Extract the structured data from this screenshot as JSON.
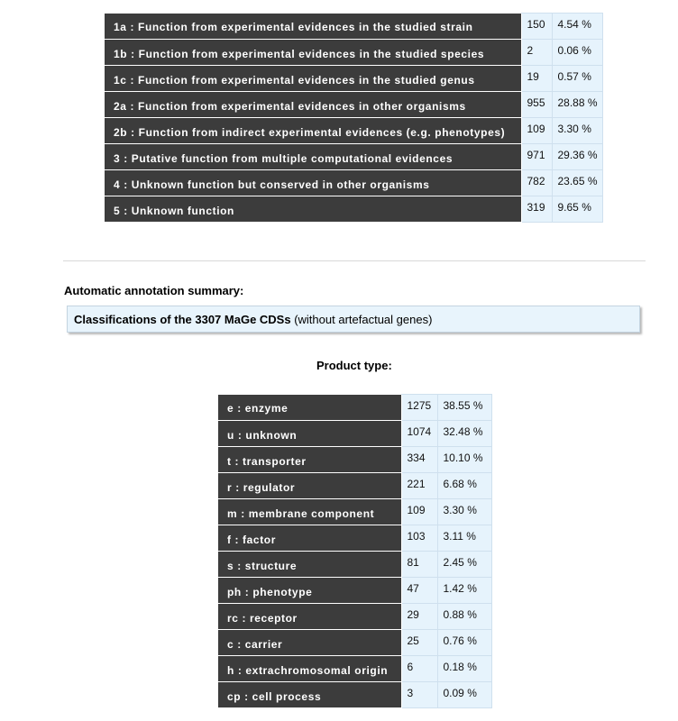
{
  "evidence_table": [
    {
      "label": "1a : Function from experimental evidences in the studied strain",
      "count": "150",
      "percent": "4.54 %"
    },
    {
      "label": "1b : Function from experimental evidences in the studied species",
      "count": "2",
      "percent": "0.06 %"
    },
    {
      "label": "1c : Function from experimental evidences in the studied genus",
      "count": "19",
      "percent": "0.57 %"
    },
    {
      "label": "2a : Function from experimental evidences in other organisms",
      "count": "955",
      "percent": "28.88 %"
    },
    {
      "label": "2b : Function from indirect experimental evidences (e.g. phenotypes)",
      "count": "109",
      "percent": "3.30 %"
    },
    {
      "label": "3 : Putative function from multiple computational evidences",
      "count": "971",
      "percent": "29.36 %"
    },
    {
      "label": "4 : Unknown function but conserved in other organisms",
      "count": "782",
      "percent": "23.65 %"
    },
    {
      "label": "5 : Unknown function",
      "count": "319",
      "percent": "9.65 %"
    }
  ],
  "summary": {
    "heading": "Automatic annotation summary:",
    "box_bold": "Classifications of the 3307 MaGe CDSs",
    "box_rest": " (without artefactual genes)"
  },
  "product": {
    "heading": "Product type:",
    "rows": [
      {
        "label": "e : enzyme",
        "count": "1275",
        "percent": "38.55 %"
      },
      {
        "label": "u : unknown",
        "count": "1074",
        "percent": "32.48 %"
      },
      {
        "label": "t : transporter",
        "count": "334",
        "percent": "10.10 %"
      },
      {
        "label": "r : regulator",
        "count": "221",
        "percent": "6.68 %"
      },
      {
        "label": "m : membrane component",
        "count": "109",
        "percent": "3.30 %"
      },
      {
        "label": "f : factor",
        "count": "103",
        "percent": "3.11 %"
      },
      {
        "label": "s : structure",
        "count": "81",
        "percent": "2.45 %"
      },
      {
        "label": "ph : phenotype",
        "count": "47",
        "percent": "1.42 %"
      },
      {
        "label": "rc : receptor",
        "count": "29",
        "percent": "0.88 %"
      },
      {
        "label": "c : carrier",
        "count": "25",
        "percent": "0.76 %"
      },
      {
        "label": "h : extrachromosomal origin",
        "count": "6",
        "percent": "0.18 %"
      },
      {
        "label": "cp : cell process",
        "count": "3",
        "percent": "0.09 %"
      }
    ]
  }
}
